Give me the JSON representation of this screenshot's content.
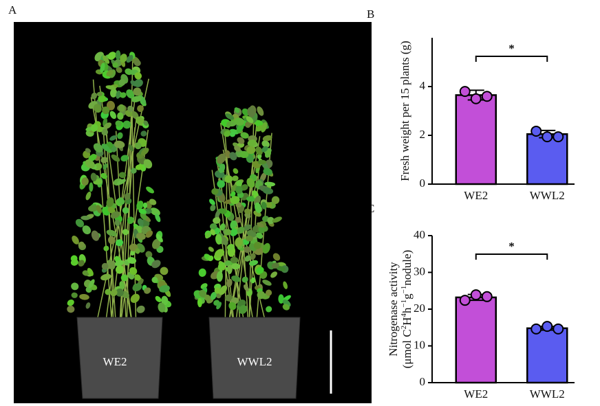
{
  "panel_labels": [
    "A",
    "B",
    "C"
  ],
  "photo": {
    "pot_labels": [
      "WE2",
      "WWL2"
    ]
  },
  "chart_data": [
    {
      "type": "bar",
      "y_label": "Fresh weight per 15 plants (g)",
      "categories": [
        "WE2",
        "WWL2"
      ],
      "values": [
        3.65,
        2.05
      ],
      "errors": [
        0.2,
        0.15
      ],
      "points": [
        [
          3.8,
          3.5,
          3.6
        ],
        [
          2.17,
          1.94,
          1.94
        ]
      ],
      "colors": [
        "#c24fd8",
        "#5a5cf0"
      ],
      "ylim": [
        0,
        6
      ],
      "yticks": [
        0,
        2,
        4
      ],
      "significance": "*"
    },
    {
      "type": "bar",
      "y_label": "Nitrogenase activity",
      "y_label_line2": [
        "(μmol C",
        "2",
        "H",
        "4",
        "h",
        "−1",
        "g",
        "−1",
        "nodule)"
      ],
      "categories": [
        "WE2",
        "WWL2"
      ],
      "values": [
        23.2,
        14.8
      ],
      "errors": [
        0.8,
        0.5
      ],
      "points": [
        [
          22.4,
          23.9,
          23.4
        ],
        [
          14.6,
          15.3,
          14.6
        ]
      ],
      "colors": [
        "#c24fd8",
        "#5a5cf0"
      ],
      "ylim": [
        0,
        40
      ],
      "yticks": [
        0,
        10,
        20,
        30,
        40
      ],
      "significance": "*"
    }
  ]
}
